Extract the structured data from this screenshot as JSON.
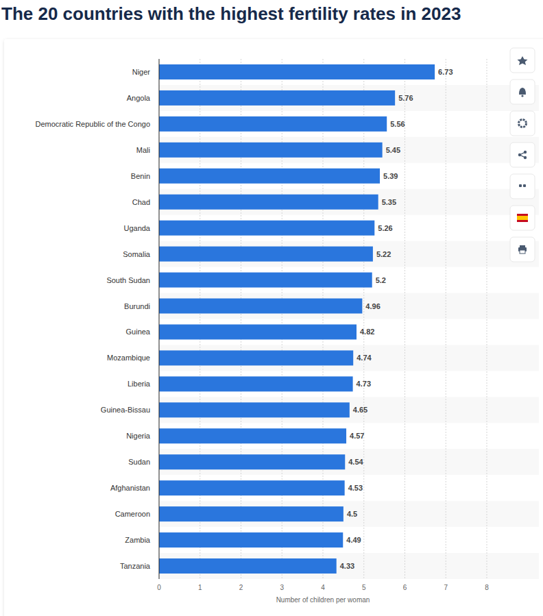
{
  "chart_data": {
    "type": "bar",
    "orientation": "horizontal",
    "title": "The 20 countries with the highest fertility rates in 2023",
    "xlabel": "Number of children per woman",
    "categories": [
      "Niger",
      "Angola",
      "Democratic Republic of the Congo",
      "Mali",
      "Benin",
      "Chad",
      "Uganda",
      "Somalia",
      "South Sudan",
      "Burundi",
      "Guinea",
      "Mozambique",
      "Liberia",
      "Guinea-Bissau",
      "Nigeria",
      "Sudan",
      "Afghanistan",
      "Cameroon",
      "Zambia",
      "Tanzania"
    ],
    "values": [
      6.73,
      5.76,
      5.56,
      5.45,
      5.39,
      5.35,
      5.26,
      5.22,
      5.2,
      4.96,
      4.82,
      4.74,
      4.73,
      4.65,
      4.57,
      4.54,
      4.53,
      4.5,
      4.49,
      4.33
    ],
    "color": "#2a76dd",
    "xlim": [
      0,
      8
    ],
    "xticks": [
      0,
      1,
      2,
      3,
      4,
      5,
      6,
      7,
      8
    ],
    "grid": true,
    "data_labels": true
  }
}
